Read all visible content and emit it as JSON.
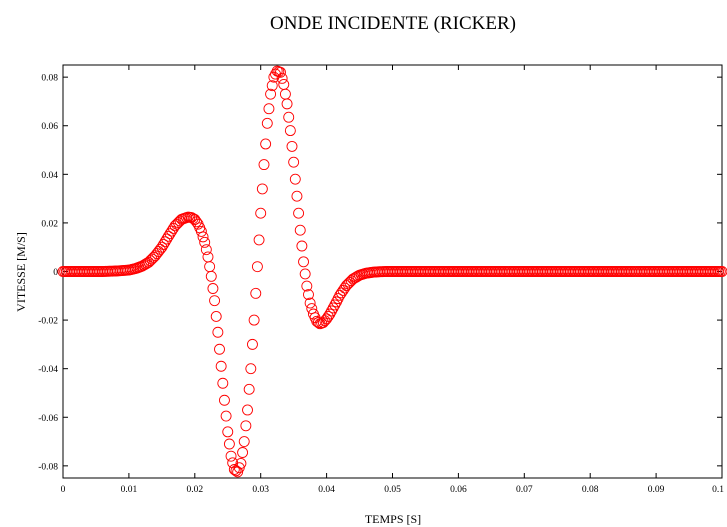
{
  "chart_data": {
    "type": "scatter",
    "title": "ONDE INCIDENTE (RICKER)",
    "xlabel": "TEMPS [S]",
    "ylabel": "VITESSE [M/S]",
    "xlim": [
      0,
      0.1
    ],
    "ylim": [
      -0.085,
      0.085
    ],
    "x_ticks": [
      0,
      0.01,
      0.02,
      0.03,
      0.04,
      0.05,
      0.06,
      0.07,
      0.08,
      0.09,
      0.1
    ],
    "x_tick_labels": [
      "0",
      "0.01",
      "0.02",
      "0.03",
      "0.04",
      "0.05",
      "0.06",
      "0.07",
      "0.08",
      "0.09",
      "0.1"
    ],
    "y_ticks": [
      -0.08,
      -0.06,
      -0.04,
      -0.02,
      0,
      0.02,
      0.04,
      0.06,
      0.08
    ],
    "y_tick_labels": [
      "-0.08",
      "-0.06",
      "-0.04",
      "-0.02",
      "0",
      "0.02",
      "0.04",
      "0.06",
      "0.08"
    ],
    "grid": false,
    "marker": "open-circle",
    "series_color": "#ff0000",
    "series": [
      {
        "x": [
          0,
          0.002,
          0.004,
          0.006,
          0.008,
          0.01,
          0.011,
          0.012,
          0.013,
          0.014,
          0.015,
          0.016,
          0.017,
          0.018,
          0.019,
          0.0195,
          0.02,
          0.0205,
          0.021,
          0.0215,
          0.022,
          0.0225,
          0.023,
          0.0235,
          0.024,
          0.0245,
          0.025,
          0.0255,
          0.026,
          0.0265,
          0.027,
          0.0275,
          0.028,
          0.0285,
          0.029,
          0.0295,
          0.03,
          0.0305,
          0.031,
          0.0315,
          0.032,
          0.0325,
          0.033,
          0.0335,
          0.034,
          0.0345,
          0.035,
          0.0355,
          0.036,
          0.0365,
          0.037,
          0.0375,
          0.038,
          0.0385,
          0.039,
          0.0395,
          0.04,
          0.0405,
          0.041,
          0.0415,
          0.042,
          0.043,
          0.044,
          0.045,
          0.046,
          0.047,
          0.048,
          0.049,
          0.05,
          0.052,
          0.054,
          0.056,
          0.058,
          0.06,
          0.062,
          0.064,
          0.066,
          0.068,
          0.07,
          0.072,
          0.074,
          0.076,
          0.078,
          0.08,
          0.082,
          0.084,
          0.086,
          0.088,
          0.09,
          0.092,
          0.094,
          0.096,
          0.098,
          0.1
        ],
        "y": [
          0,
          0,
          0,
          0,
          0.0002,
          0.0006,
          0.0012,
          0.0022,
          0.0038,
          0.0065,
          0.01,
          0.0145,
          0.0188,
          0.0215,
          0.0224,
          0.0222,
          0.0214,
          0.0195,
          0.0165,
          0.012,
          0.006,
          -0.002,
          -0.012,
          -0.025,
          -0.039,
          -0.053,
          -0.066,
          -0.076,
          -0.0815,
          -0.0825,
          -0.079,
          -0.07,
          -0.057,
          -0.04,
          -0.02,
          0.002,
          0.024,
          0.044,
          0.061,
          0.073,
          0.08,
          0.0825,
          0.082,
          0.077,
          0.069,
          0.058,
          0.045,
          0.031,
          0.017,
          0.004,
          -0.006,
          -0.013,
          -0.0175,
          -0.0205,
          -0.0215,
          -0.021,
          -0.0195,
          -0.0175,
          -0.015,
          -0.0125,
          -0.0098,
          -0.0058,
          -0.0031,
          -0.0015,
          -0.0007,
          -0.0003,
          -0.0001,
          0,
          0,
          0,
          0,
          0,
          0,
          0,
          0,
          0,
          0,
          0,
          0,
          0,
          0,
          0,
          0,
          0,
          0,
          0,
          0,
          0,
          0,
          0,
          0,
          0,
          0,
          0
        ]
      }
    ]
  }
}
